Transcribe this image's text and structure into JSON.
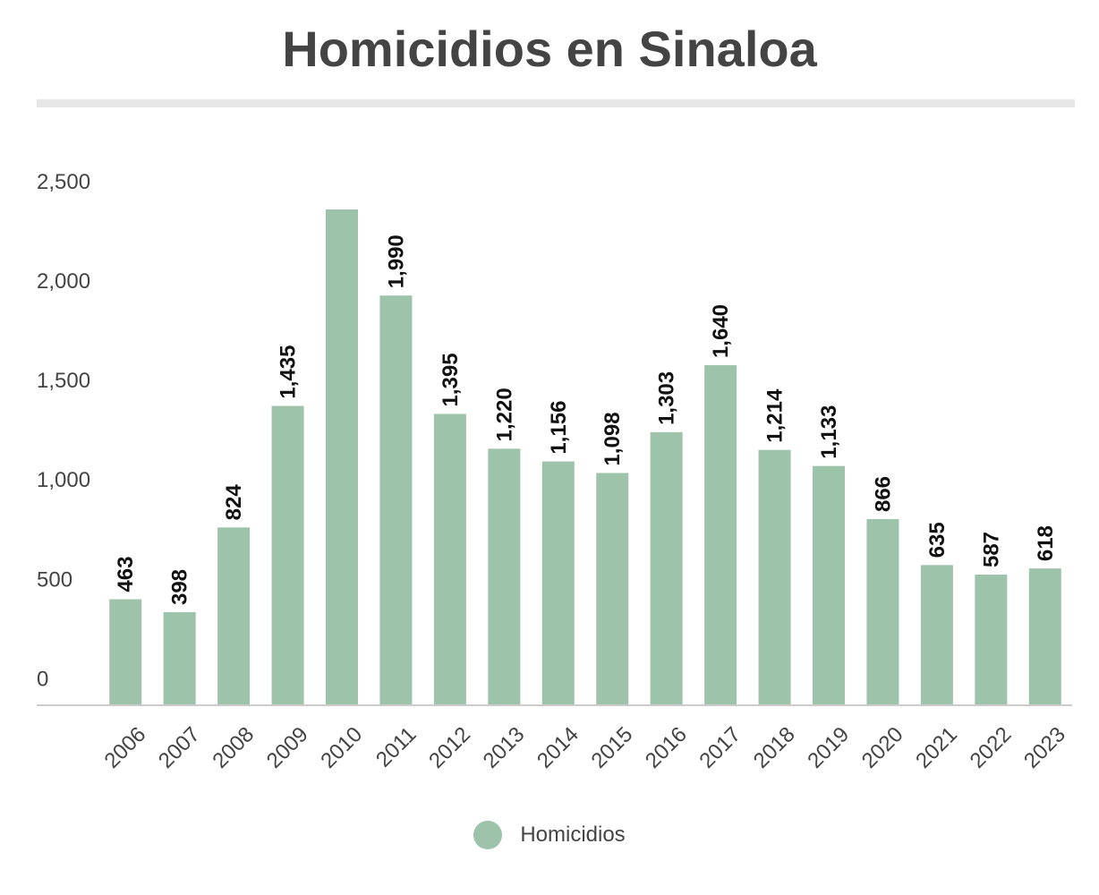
{
  "chart_data": {
    "type": "bar",
    "title": "Homicidios en Sinaloa",
    "categories": [
      "2006",
      "2007",
      "2008",
      "2009",
      "2010",
      "2011",
      "2012",
      "2013",
      "2014",
      "2015",
      "2016",
      "2017",
      "2018",
      "2019",
      "2020",
      "2021",
      "2022",
      "2023"
    ],
    "series": [
      {
        "name": "Homicidios",
        "values": [
          463,
          398,
          824,
          1435,
          2423,
          1990,
          1395,
          1220,
          1156,
          1098,
          1303,
          1640,
          1214,
          1133,
          866,
          635,
          587,
          618
        ],
        "labels": [
          "463",
          "398",
          "824",
          "1,435",
          "",
          "1,990",
          "1,395",
          "1,220",
          "1,156",
          "1,098",
          "1,303",
          "1,640",
          "1,214",
          "1,133",
          "866",
          "635",
          "587",
          "618"
        ]
      }
    ],
    "yticks": [
      "0",
      "500",
      "1,000",
      "1,500",
      "2,000",
      "2,500"
    ],
    "ylim": [
      -70,
      2500
    ],
    "grid": false,
    "legend_position": "bottom-center",
    "bar_color": "#9dc3aa",
    "axis_color": "#cccccc",
    "text_color": "#444444",
    "label_color": "#111111"
  }
}
